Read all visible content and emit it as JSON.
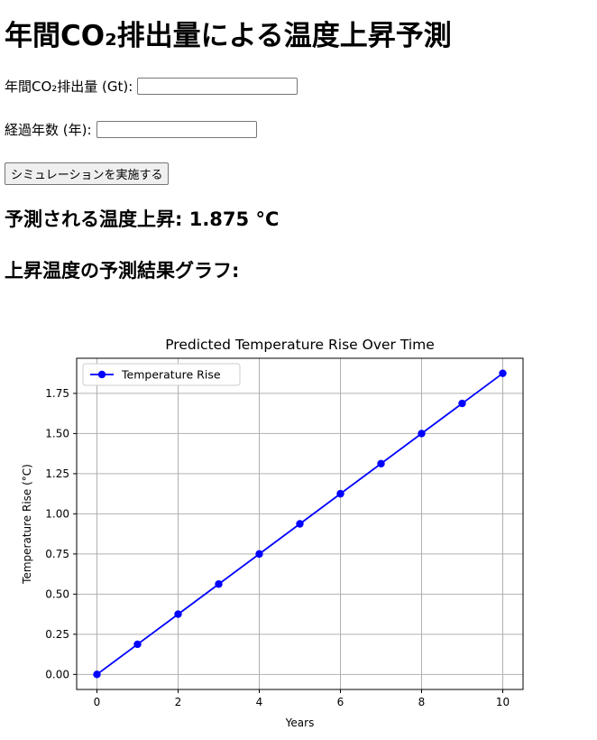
{
  "page": {
    "title": "年間CO₂排出量による温度上昇予測"
  },
  "form": {
    "emission_label": "年間CO₂排出量 (Gt):",
    "emission_value": "",
    "years_label": "経過年数 (年):",
    "years_value": "",
    "submit_label": "シミュレーションを実施する"
  },
  "result": {
    "prefix": "予測される温度上昇: ",
    "value": "1.875",
    "unit": " °C"
  },
  "graph": {
    "heading": "上昇温度の予測結果グラフ:"
  },
  "chart_data": {
    "type": "line",
    "title": "Predicted Temperature Rise Over Time",
    "xlabel": "Years",
    "ylabel": "Temperature Rise (°C)",
    "x": [
      0,
      1,
      2,
      3,
      4,
      5,
      6,
      7,
      8,
      9,
      10
    ],
    "series": [
      {
        "name": "Temperature Rise",
        "values": [
          0,
          0.1875,
          0.375,
          0.5625,
          0.75,
          0.9375,
          1.125,
          1.3125,
          1.5,
          1.6875,
          1.875
        ],
        "color": "#0000ff",
        "marker": "circle"
      }
    ],
    "xlim": [
      -0.5,
      10.5
    ],
    "ylim": [
      -0.09375,
      1.96875
    ],
    "xticks": [
      0,
      2,
      4,
      6,
      8,
      10
    ],
    "xtick_labels": [
      "0",
      "2",
      "4",
      "6",
      "8",
      "10"
    ],
    "yticks": [
      0,
      0.25,
      0.5,
      0.75,
      1.0,
      1.25,
      1.5,
      1.75
    ],
    "ytick_labels": [
      "0.00",
      "0.25",
      "0.50",
      "0.75",
      "1.00",
      "1.25",
      "1.50",
      "1.75"
    ],
    "grid": true,
    "legend_position": "upper left"
  }
}
